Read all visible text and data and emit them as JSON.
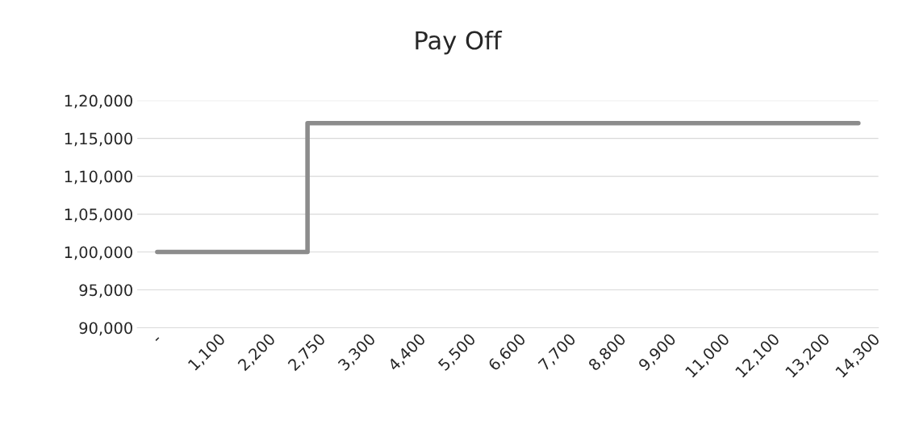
{
  "chart_data": {
    "type": "step",
    "title": "Pay Off",
    "categories": [
      "-",
      "1,100",
      "2,200",
      "2,750",
      "3,300",
      "4,400",
      "5,500",
      "6,600",
      "7,700",
      "8,800",
      "9,900",
      "11,000",
      "12,100",
      "13,200",
      "14,300"
    ],
    "series": [
      {
        "color": "#8c8c8c",
        "values": [
          100000,
          100000,
          100000,
          100000,
          117000,
          117000,
          117000,
          117000,
          117000,
          117000,
          117000,
          117000,
          117000,
          117000,
          117000
        ]
      }
    ],
    "ylim": [
      90000,
      120000
    ],
    "yticks": [
      {
        "value": 90000,
        "label": "90,000"
      },
      {
        "value": 95000,
        "label": "95,000"
      },
      {
        "value": 100000,
        "label": "1,00,000"
      },
      {
        "value": 105000,
        "label": "1,05,000"
      },
      {
        "value": 110000,
        "label": "1,10,000"
      },
      {
        "value": 115000,
        "label": "1,15,000"
      },
      {
        "value": 120000,
        "label": "1,20,000"
      }
    ],
    "grid": "y",
    "legend": false
  }
}
